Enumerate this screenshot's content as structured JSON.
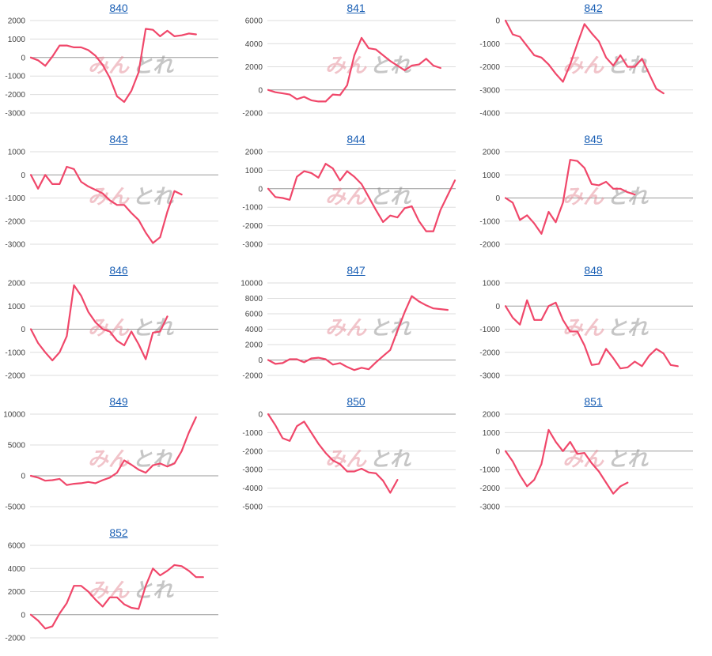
{
  "colors": {
    "line": "#f0476a",
    "grid": "#dddddd",
    "axis": "#9a9a9a",
    "link": "#1a5fb4"
  },
  "watermark": {
    "left": "みん",
    "right": "とれ"
  },
  "chart_data": [
    {
      "type": "line",
      "title": "840",
      "ylim": [
        -3000,
        2000
      ],
      "yticks": [
        2000,
        1000,
        0,
        -1000,
        -2000,
        -3000
      ],
      "values": [
        0,
        -150,
        -450,
        50,
        650,
        650,
        550,
        550,
        400,
        100,
        -400,
        -1100,
        -2100,
        -2400,
        -1800,
        -800,
        1550,
        1500,
        1150,
        1450,
        1150,
        1200,
        1300,
        1250
      ]
    },
    {
      "type": "line",
      "title": "841",
      "ylim": [
        -2000,
        6000
      ],
      "yticks": [
        6000,
        4000,
        2000,
        0,
        -2000
      ],
      "values": [
        0,
        -200,
        -300,
        -400,
        -800,
        -600,
        -900,
        -1000,
        -1000,
        -400,
        -450,
        400,
        3000,
        4500,
        3600,
        3500,
        3000,
        2500,
        2100,
        1700,
        2100,
        2200,
        2700,
        2100,
        1900
      ]
    },
    {
      "type": "line",
      "title": "842",
      "ylim": [
        -4000,
        0
      ],
      "yticks": [
        0,
        -1000,
        -2000,
        -3000,
        -4000
      ],
      "values": [
        0,
        -600,
        -700,
        -1100,
        -1500,
        -1600,
        -1900,
        -2300,
        -2650,
        -1900,
        -1000,
        -150,
        -550,
        -900,
        -1600,
        -1950,
        -1500,
        -2000,
        -2000,
        -1650,
        -2300,
        -2950,
        -3150
      ]
    },
    {
      "type": "line",
      "title": "843",
      "ylim": [
        -3000,
        1000
      ],
      "yticks": [
        1000,
        0,
        -1000,
        -2000,
        -3000
      ],
      "values": [
        0,
        -600,
        0,
        -400,
        -400,
        350,
        250,
        -300,
        -500,
        -650,
        -800,
        -1100,
        -1300,
        -1300,
        -1650,
        -1950,
        -2500,
        -2950,
        -2700,
        -1600,
        -700,
        -850
      ]
    },
    {
      "type": "line",
      "title": "844",
      "ylim": [
        -3000,
        2000
      ],
      "yticks": [
        2000,
        1000,
        0,
        -1000,
        -2000,
        -3000
      ],
      "values": [
        0,
        -450,
        -500,
        -600,
        650,
        950,
        850,
        600,
        1350,
        1100,
        450,
        950,
        650,
        250,
        -450,
        -1150,
        -1800,
        -1450,
        -1550,
        -1050,
        -950,
        -1750,
        -2300,
        -2300,
        -1150,
        -350,
        450
      ]
    },
    {
      "type": "line",
      "title": "845",
      "ylim": [
        -2000,
        2000
      ],
      "yticks": [
        2000,
        1000,
        0,
        -1000,
        -2000
      ],
      "values": [
        0,
        -200,
        -950,
        -750,
        -1100,
        -1550,
        -600,
        -1050,
        -200,
        1650,
        1600,
        1300,
        600,
        550,
        700,
        400,
        400,
        250,
        150
      ]
    },
    {
      "type": "line",
      "title": "846",
      "ylim": [
        -2000,
        2000
      ],
      "yticks": [
        2000,
        1000,
        0,
        -1000,
        -2000
      ],
      "values": [
        0,
        -600,
        -1000,
        -1350,
        -1000,
        -300,
        1900,
        1450,
        750,
        300,
        0,
        -100,
        -500,
        -700,
        -100,
        -650,
        -1300,
        -150,
        -100,
        550
      ]
    },
    {
      "type": "line",
      "title": "847",
      "ylim": [
        -2000,
        10000
      ],
      "yticks": [
        10000,
        8000,
        6000,
        4000,
        2000,
        0,
        -2000
      ],
      "values": [
        0,
        -500,
        -400,
        100,
        100,
        -300,
        200,
        300,
        100,
        -600,
        -400,
        -900,
        -1300,
        -1000,
        -1200,
        -300,
        500,
        1300,
        3800,
        6200,
        8300,
        7600,
        7100,
        6700,
        6600,
        6500
      ]
    },
    {
      "type": "line",
      "title": "848",
      "ylim": [
        -3000,
        1000
      ],
      "yticks": [
        1000,
        0,
        -1000,
        -2000,
        -3000
      ],
      "values": [
        0,
        -500,
        -800,
        250,
        -600,
        -600,
        0,
        150,
        -600,
        -1100,
        -1100,
        -1700,
        -2550,
        -2500,
        -1850,
        -2250,
        -2700,
        -2650,
        -2400,
        -2600,
        -2150,
        -1850,
        -2050,
        -2550,
        -2600
      ]
    },
    {
      "type": "line",
      "title": "849",
      "ylim": [
        -5000,
        10000
      ],
      "yticks": [
        10000,
        5000,
        0,
        -5000
      ],
      "values": [
        0,
        -300,
        -800,
        -700,
        -500,
        -1500,
        -1300,
        -1200,
        -1000,
        -1200,
        -700,
        -300,
        500,
        2500,
        1800,
        1000,
        500,
        1700,
        2000,
        1500,
        2000,
        4000,
        7000,
        9500
      ]
    },
    {
      "type": "line",
      "title": "850",
      "ylim": [
        -5000,
        0
      ],
      "yticks": [
        0,
        -1000,
        -2000,
        -3000,
        -4000,
        -5000
      ],
      "values": [
        0,
        -600,
        -1300,
        -1450,
        -650,
        -400,
        -1000,
        -1600,
        -2100,
        -2500,
        -2700,
        -3100,
        -3100,
        -2950,
        -3150,
        -3200,
        -3600,
        -4250,
        -3550
      ]
    },
    {
      "type": "line",
      "title": "851",
      "ylim": [
        -3000,
        2000
      ],
      "yticks": [
        2000,
        1000,
        0,
        -1000,
        -2000,
        -3000
      ],
      "values": [
        0,
        -550,
        -1300,
        -1900,
        -1550,
        -700,
        1150,
        500,
        0,
        500,
        -150,
        -100,
        -650,
        -1100,
        -1700,
        -2300,
        -1900,
        -1700
      ]
    },
    {
      "type": "line",
      "title": "852",
      "ylim": [
        -2000,
        6000
      ],
      "yticks": [
        6000,
        4000,
        2000,
        0,
        -2000
      ],
      "values": [
        0,
        -500,
        -1200,
        -1000,
        100,
        1000,
        2500,
        2500,
        2000,
        1300,
        700,
        1500,
        1500,
        900,
        600,
        500,
        2500,
        4000,
        3400,
        3800,
        4300,
        4200,
        3800,
        3250,
        3250
      ]
    }
  ]
}
